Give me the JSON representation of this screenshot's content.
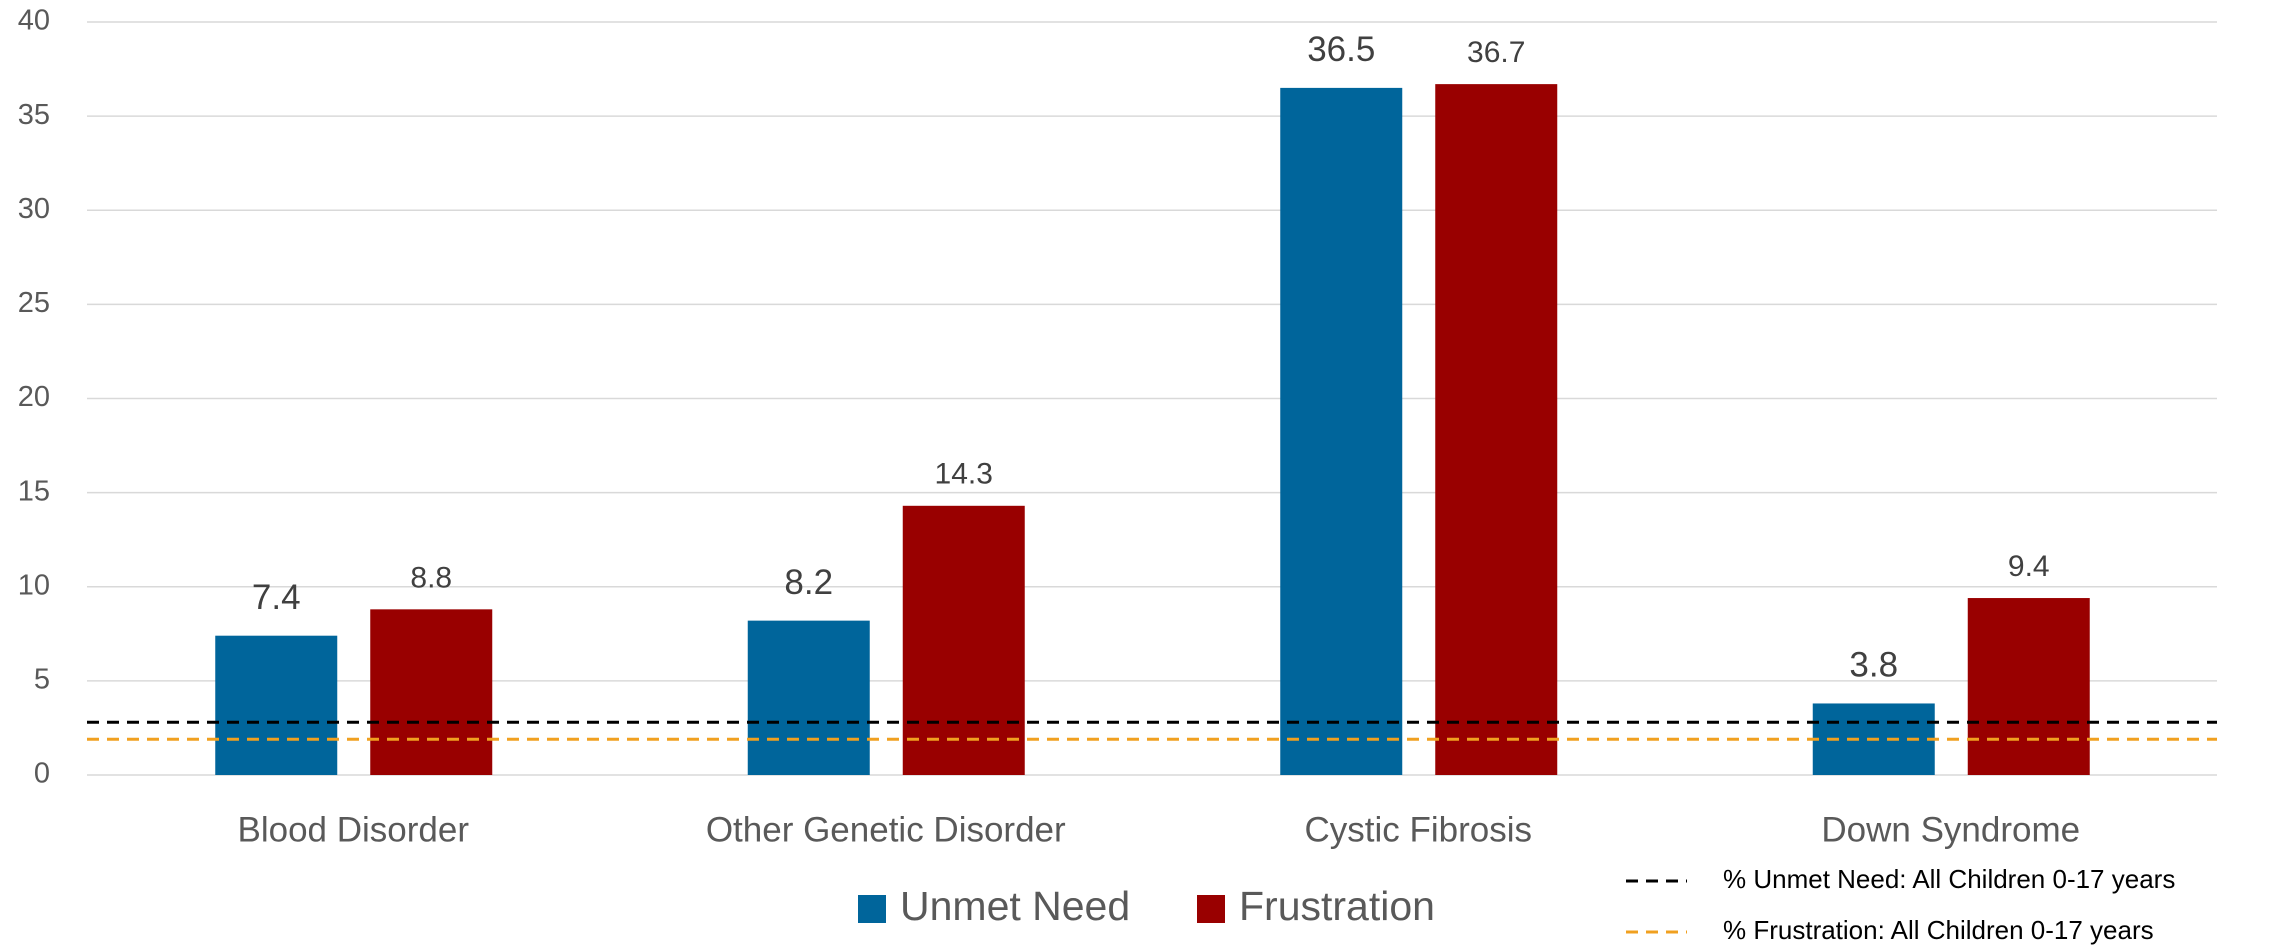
{
  "chart_data": {
    "type": "bar",
    "categories": [
      "Blood Disorder",
      "Other Genetic Disorder",
      "Cystic Fibrosis",
      "Down Syndrome"
    ],
    "series": [
      {
        "name": "Unmet Need",
        "color": "#00659b",
        "values": [
          7.4,
          8.2,
          36.5,
          3.8
        ]
      },
      {
        "name": "Frustration",
        "color": "#990000",
        "values": [
          8.8,
          14.3,
          36.7,
          9.4
        ]
      }
    ],
    "reference_lines": [
      {
        "name": "% Unmet Need: All Children 0-17 years",
        "color": "#000000",
        "value": 2.8
      },
      {
        "name": "% Frustration: All Children 0-17 years",
        "color": "#f0a020",
        "value": 1.9
      }
    ],
    "ylim": [
      0,
      40
    ],
    "yticks": [
      0,
      5,
      10,
      15,
      20,
      25,
      30,
      35,
      40
    ],
    "grid": true
  }
}
